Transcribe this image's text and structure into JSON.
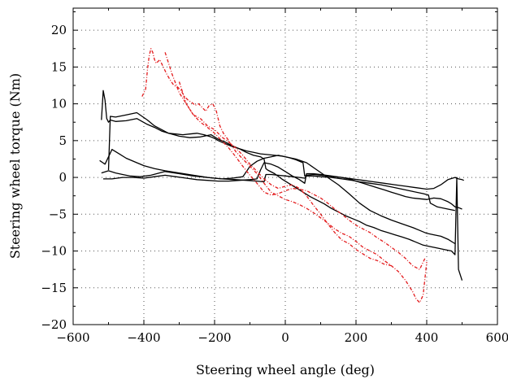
{
  "chart_data": {
    "type": "line",
    "title": "",
    "xlabel": "Steering wheel angle (deg)",
    "ylabel": "Steering wheel torque (Nm)",
    "xlim": [
      -600,
      600
    ],
    "ylim": [
      -20,
      23
    ],
    "xticks": [
      -600,
      -400,
      -200,
      0,
      200,
      400,
      600
    ],
    "yticks": [
      -20,
      -15,
      -10,
      -5,
      0,
      5,
      10,
      15,
      20
    ],
    "x_tick_labels": [
      "−600",
      "−400",
      "−200",
      "0",
      "200",
      "400",
      "600"
    ],
    "y_tick_labels": [
      "−20",
      "−15",
      "−10",
      "−5",
      "0",
      "5",
      "10",
      "15",
      "20"
    ],
    "grid": true,
    "grid_style": "dotted",
    "legend": "none",
    "series": [
      {
        "color": "#000000",
        "dash": "solid",
        "x": [
          -520,
          -515,
          -510,
          -505,
          -500,
          -495,
          -480,
          -450,
          -420,
          -390,
          -370,
          -350,
          -330,
          -310,
          -290,
          -270,
          -250,
          -230,
          -210,
          -200,
          -190,
          -170,
          -150,
          -130,
          -110,
          -90,
          -70,
          -50,
          -30,
          -10,
          10,
          30,
          50,
          55,
          60,
          80,
          100,
          120,
          140,
          160,
          180,
          200,
          220,
          240,
          260,
          280,
          300,
          320,
          340,
          360,
          380,
          400,
          420,
          440,
          460,
          470,
          480,
          490,
          500
        ],
        "y": [
          7.8,
          11.8,
          10.5,
          8.0,
          7.5,
          7.8,
          7.6,
          7.7,
          8.0,
          7.2,
          6.8,
          6.3,
          6.0,
          5.9,
          5.8,
          5.9,
          6.0,
          5.8,
          5.5,
          5.3,
          5.0,
          4.6,
          4.2,
          3.9,
          3.6,
          3.4,
          3.2,
          3.1,
          3.0,
          2.9,
          2.7,
          2.4,
          2.0,
          0.2,
          0.3,
          0.4,
          0.3,
          0.2,
          0.1,
          0.0,
          -0.2,
          -0.5,
          -0.8,
          -1.1,
          -1.4,
          -1.7,
          -2.0,
          -2.3,
          -2.6,
          -2.8,
          -2.9,
          -3.0,
          -2.8,
          -2.9,
          -3.3,
          -3.6,
          -4.0,
          -4.1,
          -4.3
        ]
      },
      {
        "color": "#000000",
        "dash": "solid",
        "x": [
          -500,
          -495,
          -480,
          -450,
          -420,
          -390,
          -370,
          -350,
          -330,
          -300,
          -270,
          -240,
          -210,
          -190,
          -170,
          -150,
          -130,
          -110,
          -90,
          -70,
          -60,
          -55,
          -50,
          -30,
          -10,
          10,
          30,
          50,
          70,
          90,
          110,
          130,
          150,
          170,
          190,
          210,
          230,
          250,
          270,
          290,
          310,
          330,
          350,
          370,
          390,
          410,
          430,
          450,
          470,
          480,
          485,
          490,
          500
        ],
        "y": [
          1.0,
          8.3,
          8.2,
          8.5,
          8.8,
          7.8,
          7.0,
          6.5,
          6.0,
          5.6,
          5.4,
          5.5,
          5.8,
          5.2,
          4.8,
          4.3,
          3.9,
          3.4,
          3.0,
          2.8,
          2.5,
          1.2,
          1.0,
          0.5,
          -0.2,
          -0.8,
          -1.4,
          -2.0,
          -2.6,
          -3.1,
          -3.6,
          -4.2,
          -4.7,
          -5.2,
          -5.6,
          -6.0,
          -6.5,
          -6.8,
          -7.2,
          -7.5,
          -7.8,
          -8.1,
          -8.4,
          -8.8,
          -9.2,
          -9.4,
          -9.6,
          -9.8,
          -10.0,
          -10.5,
          0.0,
          -12.5,
          -14.0
        ]
      },
      {
        "color": "#000000",
        "dash": "solid",
        "x": [
          -525,
          -510,
          -490,
          -470,
          -450,
          -420,
          -400,
          -370,
          -340,
          -300,
          -260,
          -220,
          -180,
          -140,
          -110,
          -80,
          -60,
          -55,
          -40,
          -20,
          0,
          20,
          40,
          55,
          60,
          80,
          100,
          130,
          160,
          190,
          210,
          240,
          270,
          300,
          330,
          360,
          390,
          405,
          410,
          430,
          460,
          480
        ],
        "y": [
          2.3,
          1.8,
          3.8,
          3.2,
          2.6,
          2.0,
          1.6,
          1.2,
          0.9,
          0.6,
          0.3,
          0.0,
          -0.2,
          -0.3,
          -0.4,
          -0.5,
          -0.6,
          0.4,
          0.4,
          0.3,
          0.2,
          0.1,
          0.0,
          -0.1,
          0.2,
          0.2,
          0.1,
          0.0,
          -0.2,
          -0.4,
          -0.6,
          -0.8,
          -1.0,
          -1.3,
          -1.6,
          -1.9,
          -2.2,
          -2.4,
          -3.5,
          -4.0,
          -4.3,
          -4.5
        ]
      },
      {
        "color": "#000000",
        "dash": "solid",
        "x": [
          -520,
          -500,
          -480,
          -460,
          -440,
          -410,
          -380,
          -340,
          -300,
          -260,
          -220,
          -180,
          -150,
          -120,
          -100,
          -80,
          -60,
          -40,
          -20,
          0,
          30,
          60,
          90,
          120,
          150,
          180,
          210,
          240,
          270,
          300,
          330,
          360,
          380,
          400,
          420,
          440,
          460,
          480
        ],
        "y": [
          0.6,
          0.9,
          0.6,
          0.4,
          0.2,
          0.1,
          0.3,
          0.8,
          0.5,
          0.2,
          0.0,
          -0.2,
          -0.1,
          0.1,
          1.5,
          2.2,
          2.6,
          2.8,
          3.0,
          2.8,
          2.5,
          2.0,
          1.0,
          0.0,
          -1.0,
          -2.2,
          -3.5,
          -4.5,
          -5.2,
          -5.8,
          -6.3,
          -6.8,
          -7.2,
          -7.6,
          -7.8,
          -8.0,
          -8.4,
          -9.0
        ]
      },
      {
        "color": "#000000",
        "dash": "solid",
        "x": [
          -515,
          -490,
          -460,
          -430,
          -400,
          -370,
          -340,
          -310,
          -280,
          -250,
          -220,
          -190,
          -160,
          -130,
          -100,
          -80,
          -70,
          -60,
          -40,
          -20,
          0,
          20,
          40,
          55,
          60,
          80,
          100,
          130,
          160,
          190,
          220,
          250,
          280,
          310,
          340,
          370,
          400,
          420,
          440,
          460,
          480,
          490,
          500,
          505
        ],
        "y": [
          -0.2,
          -0.2,
          0.0,
          0.0,
          -0.1,
          0.1,
          0.3,
          0.1,
          -0.1,
          -0.3,
          -0.4,
          -0.5,
          -0.5,
          -0.4,
          -0.3,
          -0.2,
          1.0,
          2.0,
          1.8,
          1.4,
          0.8,
          0.2,
          -0.3,
          -0.8,
          0.5,
          0.5,
          0.4,
          0.2,
          0.0,
          -0.2,
          -0.4,
          -0.6,
          -0.8,
          -1.0,
          -1.2,
          -1.4,
          -1.6,
          -1.5,
          -1.0,
          -0.3,
          0.0,
          -0.2,
          -0.3,
          -0.4
        ]
      },
      {
        "color": "#e31a1c",
        "dash": "4,2,1,2",
        "x": [
          -405,
          -400,
          -395,
          -390,
          -385,
          -380,
          -375,
          -370,
          -365,
          -355,
          -345,
          -335,
          -325,
          -315,
          -305,
          -295,
          -285,
          -275,
          -265,
          -255,
          -245,
          -235,
          -225,
          -215,
          -205,
          -195,
          -185,
          -175,
          -160,
          -140,
          -120,
          -100,
          -80,
          -60,
          -40,
          -20,
          0,
          20,
          40,
          60,
          80,
          100,
          120,
          140,
          160,
          180,
          200,
          220,
          240,
          260,
          280,
          300,
          320,
          340,
          360,
          370,
          380,
          390,
          400
        ],
        "y": [
          11.0,
          11.5,
          12.0,
          14.5,
          16.5,
          17.5,
          17.0,
          16.0,
          15.5,
          16.0,
          15.0,
          14.0,
          13.2,
          12.5,
          12.3,
          11.8,
          11.0,
          10.5,
          10.2,
          9.8,
          10.0,
          9.5,
          9.0,
          9.8,
          10.0,
          9.0,
          7.0,
          6.0,
          5.0,
          3.5,
          2.5,
          1.5,
          0.5,
          -0.8,
          -2.0,
          -2.5,
          -3.0,
          -3.3,
          -3.7,
          -4.2,
          -4.8,
          -5.5,
          -6.2,
          -7.0,
          -7.6,
          -8.0,
          -8.7,
          -9.5,
          -10.0,
          -10.5,
          -11.3,
          -12.0,
          -12.8,
          -14.0,
          -15.5,
          -16.5,
          -17.0,
          -16.0,
          -11.5
        ]
      },
      {
        "color": "#e31a1c",
        "dash": "4,2,1,2",
        "x": [
          -340,
          -320,
          -300,
          -280,
          -260,
          -240,
          -220,
          -200,
          -180,
          -160,
          -140,
          -120,
          -100,
          -80,
          -60,
          -40,
          -20,
          0,
          20,
          40,
          60,
          80,
          100,
          120,
          140,
          160,
          180,
          200,
          220,
          240,
          260,
          280,
          300,
          320,
          340,
          360,
          380,
          395
        ],
        "y": [
          17.0,
          14.0,
          11.5,
          10.0,
          8.5,
          7.5,
          6.8,
          6.0,
          5.0,
          4.0,
          2.8,
          1.5,
          0.3,
          -0.8,
          -2.0,
          -2.4,
          -2.2,
          -1.8,
          -1.5,
          -1.6,
          -1.8,
          -2.3,
          -2.8,
          -3.5,
          -4.3,
          -5.0,
          -5.8,
          -6.5,
          -7.0,
          -7.5,
          -8.2,
          -8.8,
          -9.5,
          -10.2,
          -11.0,
          -12.0,
          -12.5,
          -11.0
        ]
      },
      {
        "color": "#e31a1c",
        "dash": "4,2,1,2",
        "x": [
          -300,
          -280,
          -260,
          -240,
          -220,
          -200,
          -180,
          -160,
          -140,
          -120,
          -100,
          -80,
          -60,
          -40,
          -20,
          0,
          20,
          40,
          60,
          80,
          100,
          120,
          140,
          160,
          180,
          200,
          220,
          240,
          260,
          280,
          300
        ],
        "y": [
          13.0,
          10.0,
          8.5,
          8.0,
          7.0,
          6.5,
          5.5,
          4.8,
          4.0,
          3.0,
          1.8,
          0.8,
          -0.2,
          -1.0,
          -1.5,
          -1.2,
          -1.0,
          -1.5,
          -2.5,
          -3.8,
          -5.0,
          -6.3,
          -7.5,
          -8.5,
          -9.0,
          -9.8,
          -10.4,
          -11.0,
          -11.3,
          -11.8,
          -12.0
        ]
      }
    ]
  }
}
